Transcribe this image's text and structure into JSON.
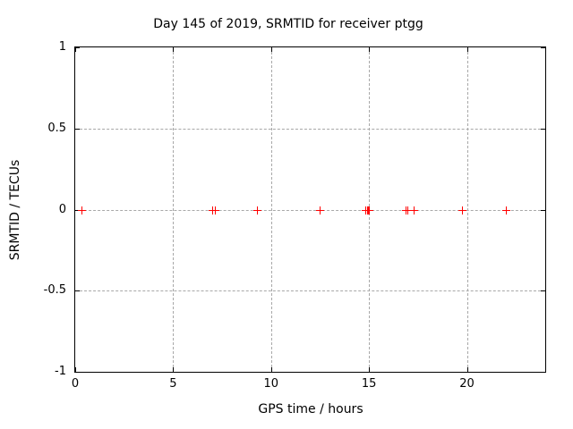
{
  "title": "Day 145 of 2019, SRMTID for receiver ptgg",
  "chart_data": {
    "type": "scatter",
    "title": "Day 145 of 2019, SRMTID for receiver ptgg",
    "xlabel": "GPS time / hours",
    "ylabel": "SRMTID / TECUs",
    "xlim": [
      0,
      24
    ],
    "ylim": [
      -1,
      1
    ],
    "xticks": [
      0,
      5,
      10,
      15,
      20
    ],
    "yticks": [
      -1,
      -0.5,
      0,
      0.5,
      1
    ],
    "grid": true,
    "legend": false,
    "marker": "plus",
    "marker_color": "#ff0000",
    "grid_color": "#a8a8a8",
    "border_color": "#000000",
    "background_color": "#ffffff",
    "points": [
      {
        "x": 0.3,
        "y": 0
      },
      {
        "x": 7.0,
        "y": 0
      },
      {
        "x": 7.15,
        "y": 0
      },
      {
        "x": 9.3,
        "y": 0
      },
      {
        "x": 12.5,
        "y": 0
      },
      {
        "x": 14.8,
        "y": 0
      },
      {
        "x": 14.9,
        "y": 0
      },
      {
        "x": 14.95,
        "y": 0
      },
      {
        "x": 15.0,
        "y": 0
      },
      {
        "x": 16.85,
        "y": 0
      },
      {
        "x": 16.95,
        "y": 0
      },
      {
        "x": 17.3,
        "y": 0
      },
      {
        "x": 19.75,
        "y": 0
      },
      {
        "x": 22.0,
        "y": 0
      }
    ]
  }
}
